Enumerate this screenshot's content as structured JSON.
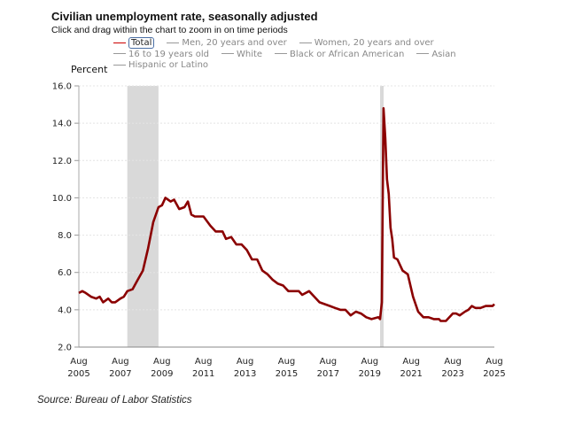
{
  "header": {
    "title": "Civilian unemployment rate, seasonally adjusted",
    "subtitle": "Click and drag within the chart to zoom in on time periods"
  },
  "legend": [
    {
      "label": "Total",
      "active": true
    },
    {
      "label": "Men, 20 years and over",
      "active": false
    },
    {
      "label": "Women, 20 years and over",
      "active": false
    },
    {
      "label": "16 to 19 years old",
      "active": false
    },
    {
      "label": "White",
      "active": false
    },
    {
      "label": "Black or African American",
      "active": false
    },
    {
      "label": "Asian",
      "active": false
    },
    {
      "label": "Hispanic or Latino",
      "active": false
    }
  ],
  "source": "Source: Bureau of Labor Statistics",
  "chart_data": {
    "type": "line",
    "ylabel": "Percent",
    "ylim": [
      2.0,
      16.0
    ],
    "yticks": [
      "2.0",
      "4.0",
      "6.0",
      "8.0",
      "10.0",
      "12.0",
      "14.0",
      "16.0"
    ],
    "xlim": [
      "2005-08",
      "2025-08"
    ],
    "xticks": [
      [
        "Aug",
        "2005"
      ],
      [
        "Aug",
        "2007"
      ],
      [
        "Aug",
        "2009"
      ],
      [
        "Aug",
        "2011"
      ],
      [
        "Aug",
        "2013"
      ],
      [
        "Aug",
        "2015"
      ],
      [
        "Aug",
        "2017"
      ],
      [
        "Aug",
        "2019"
      ],
      [
        "Aug",
        "2021"
      ],
      [
        "Aug",
        "2023"
      ],
      [
        "Aug",
        "2025"
      ]
    ],
    "grid": "horizontal dotted",
    "line_color": "#8b0000",
    "recession_color": "#d9d9d9",
    "recessions": [
      [
        "2007-12",
        "2009-06"
      ],
      [
        "2020-02",
        "2020-04"
      ]
    ],
    "series": [
      {
        "name": "Total",
        "points": [
          [
            "2005-08",
            4.9
          ],
          [
            "2005-10",
            5.0
          ],
          [
            "2005-12",
            4.9
          ],
          [
            "2006-03",
            4.7
          ],
          [
            "2006-06",
            4.6
          ],
          [
            "2006-08",
            4.7
          ],
          [
            "2006-10",
            4.4
          ],
          [
            "2007-01",
            4.6
          ],
          [
            "2007-03",
            4.4
          ],
          [
            "2007-05",
            4.4
          ],
          [
            "2007-08",
            4.6
          ],
          [
            "2007-10",
            4.7
          ],
          [
            "2007-12",
            5.0
          ],
          [
            "2008-03",
            5.1
          ],
          [
            "2008-06",
            5.6
          ],
          [
            "2008-09",
            6.1
          ],
          [
            "2008-12",
            7.3
          ],
          [
            "2009-03",
            8.7
          ],
          [
            "2009-06",
            9.5
          ],
          [
            "2009-08",
            9.6
          ],
          [
            "2009-10",
            10.0
          ],
          [
            "2010-01",
            9.8
          ],
          [
            "2010-03",
            9.9
          ],
          [
            "2010-06",
            9.4
          ],
          [
            "2010-09",
            9.5
          ],
          [
            "2010-11",
            9.8
          ],
          [
            "2011-01",
            9.1
          ],
          [
            "2011-03",
            9.0
          ],
          [
            "2011-08",
            9.0
          ],
          [
            "2011-12",
            8.5
          ],
          [
            "2012-03",
            8.2
          ],
          [
            "2012-07",
            8.2
          ],
          [
            "2012-09",
            7.8
          ],
          [
            "2012-12",
            7.9
          ],
          [
            "2013-03",
            7.5
          ],
          [
            "2013-06",
            7.5
          ],
          [
            "2013-09",
            7.2
          ],
          [
            "2013-12",
            6.7
          ],
          [
            "2014-03",
            6.7
          ],
          [
            "2014-06",
            6.1
          ],
          [
            "2014-09",
            5.9
          ],
          [
            "2014-12",
            5.6
          ],
          [
            "2015-03",
            5.4
          ],
          [
            "2015-06",
            5.3
          ],
          [
            "2015-09",
            5.0
          ],
          [
            "2015-12",
            5.0
          ],
          [
            "2016-03",
            5.0
          ],
          [
            "2016-05",
            4.8
          ],
          [
            "2016-09",
            5.0
          ],
          [
            "2016-12",
            4.7
          ],
          [
            "2017-03",
            4.4
          ],
          [
            "2017-06",
            4.3
          ],
          [
            "2017-09",
            4.2
          ],
          [
            "2017-12",
            4.1
          ],
          [
            "2018-03",
            4.0
          ],
          [
            "2018-06",
            4.0
          ],
          [
            "2018-09",
            3.7
          ],
          [
            "2018-12",
            3.9
          ],
          [
            "2019-03",
            3.8
          ],
          [
            "2019-06",
            3.6
          ],
          [
            "2019-09",
            3.5
          ],
          [
            "2020-01",
            3.6
          ],
          [
            "2020-02",
            3.5
          ],
          [
            "2020-03",
            4.4
          ],
          [
            "2020-04",
            14.8
          ],
          [
            "2020-05",
            13.2
          ],
          [
            "2020-06",
            11.0
          ],
          [
            "2020-07",
            10.2
          ],
          [
            "2020-08",
            8.4
          ],
          [
            "2020-09",
            7.8
          ],
          [
            "2020-10",
            6.8
          ],
          [
            "2020-12",
            6.7
          ],
          [
            "2021-03",
            6.1
          ],
          [
            "2021-06",
            5.9
          ],
          [
            "2021-09",
            4.7
          ],
          [
            "2021-12",
            3.9
          ],
          [
            "2022-03",
            3.6
          ],
          [
            "2022-06",
            3.6
          ],
          [
            "2022-09",
            3.5
          ],
          [
            "2022-12",
            3.5
          ],
          [
            "2023-01",
            3.4
          ],
          [
            "2023-04",
            3.4
          ],
          [
            "2023-08",
            3.8
          ],
          [
            "2023-10",
            3.8
          ],
          [
            "2023-12",
            3.7
          ],
          [
            "2024-03",
            3.9
          ],
          [
            "2024-05",
            4.0
          ],
          [
            "2024-07",
            4.2
          ],
          [
            "2024-09",
            4.1
          ],
          [
            "2024-12",
            4.1
          ],
          [
            "2025-03",
            4.2
          ],
          [
            "2025-05",
            4.2
          ],
          [
            "2025-07",
            4.2
          ],
          [
            "2025-08",
            4.3
          ]
        ]
      }
    ]
  }
}
